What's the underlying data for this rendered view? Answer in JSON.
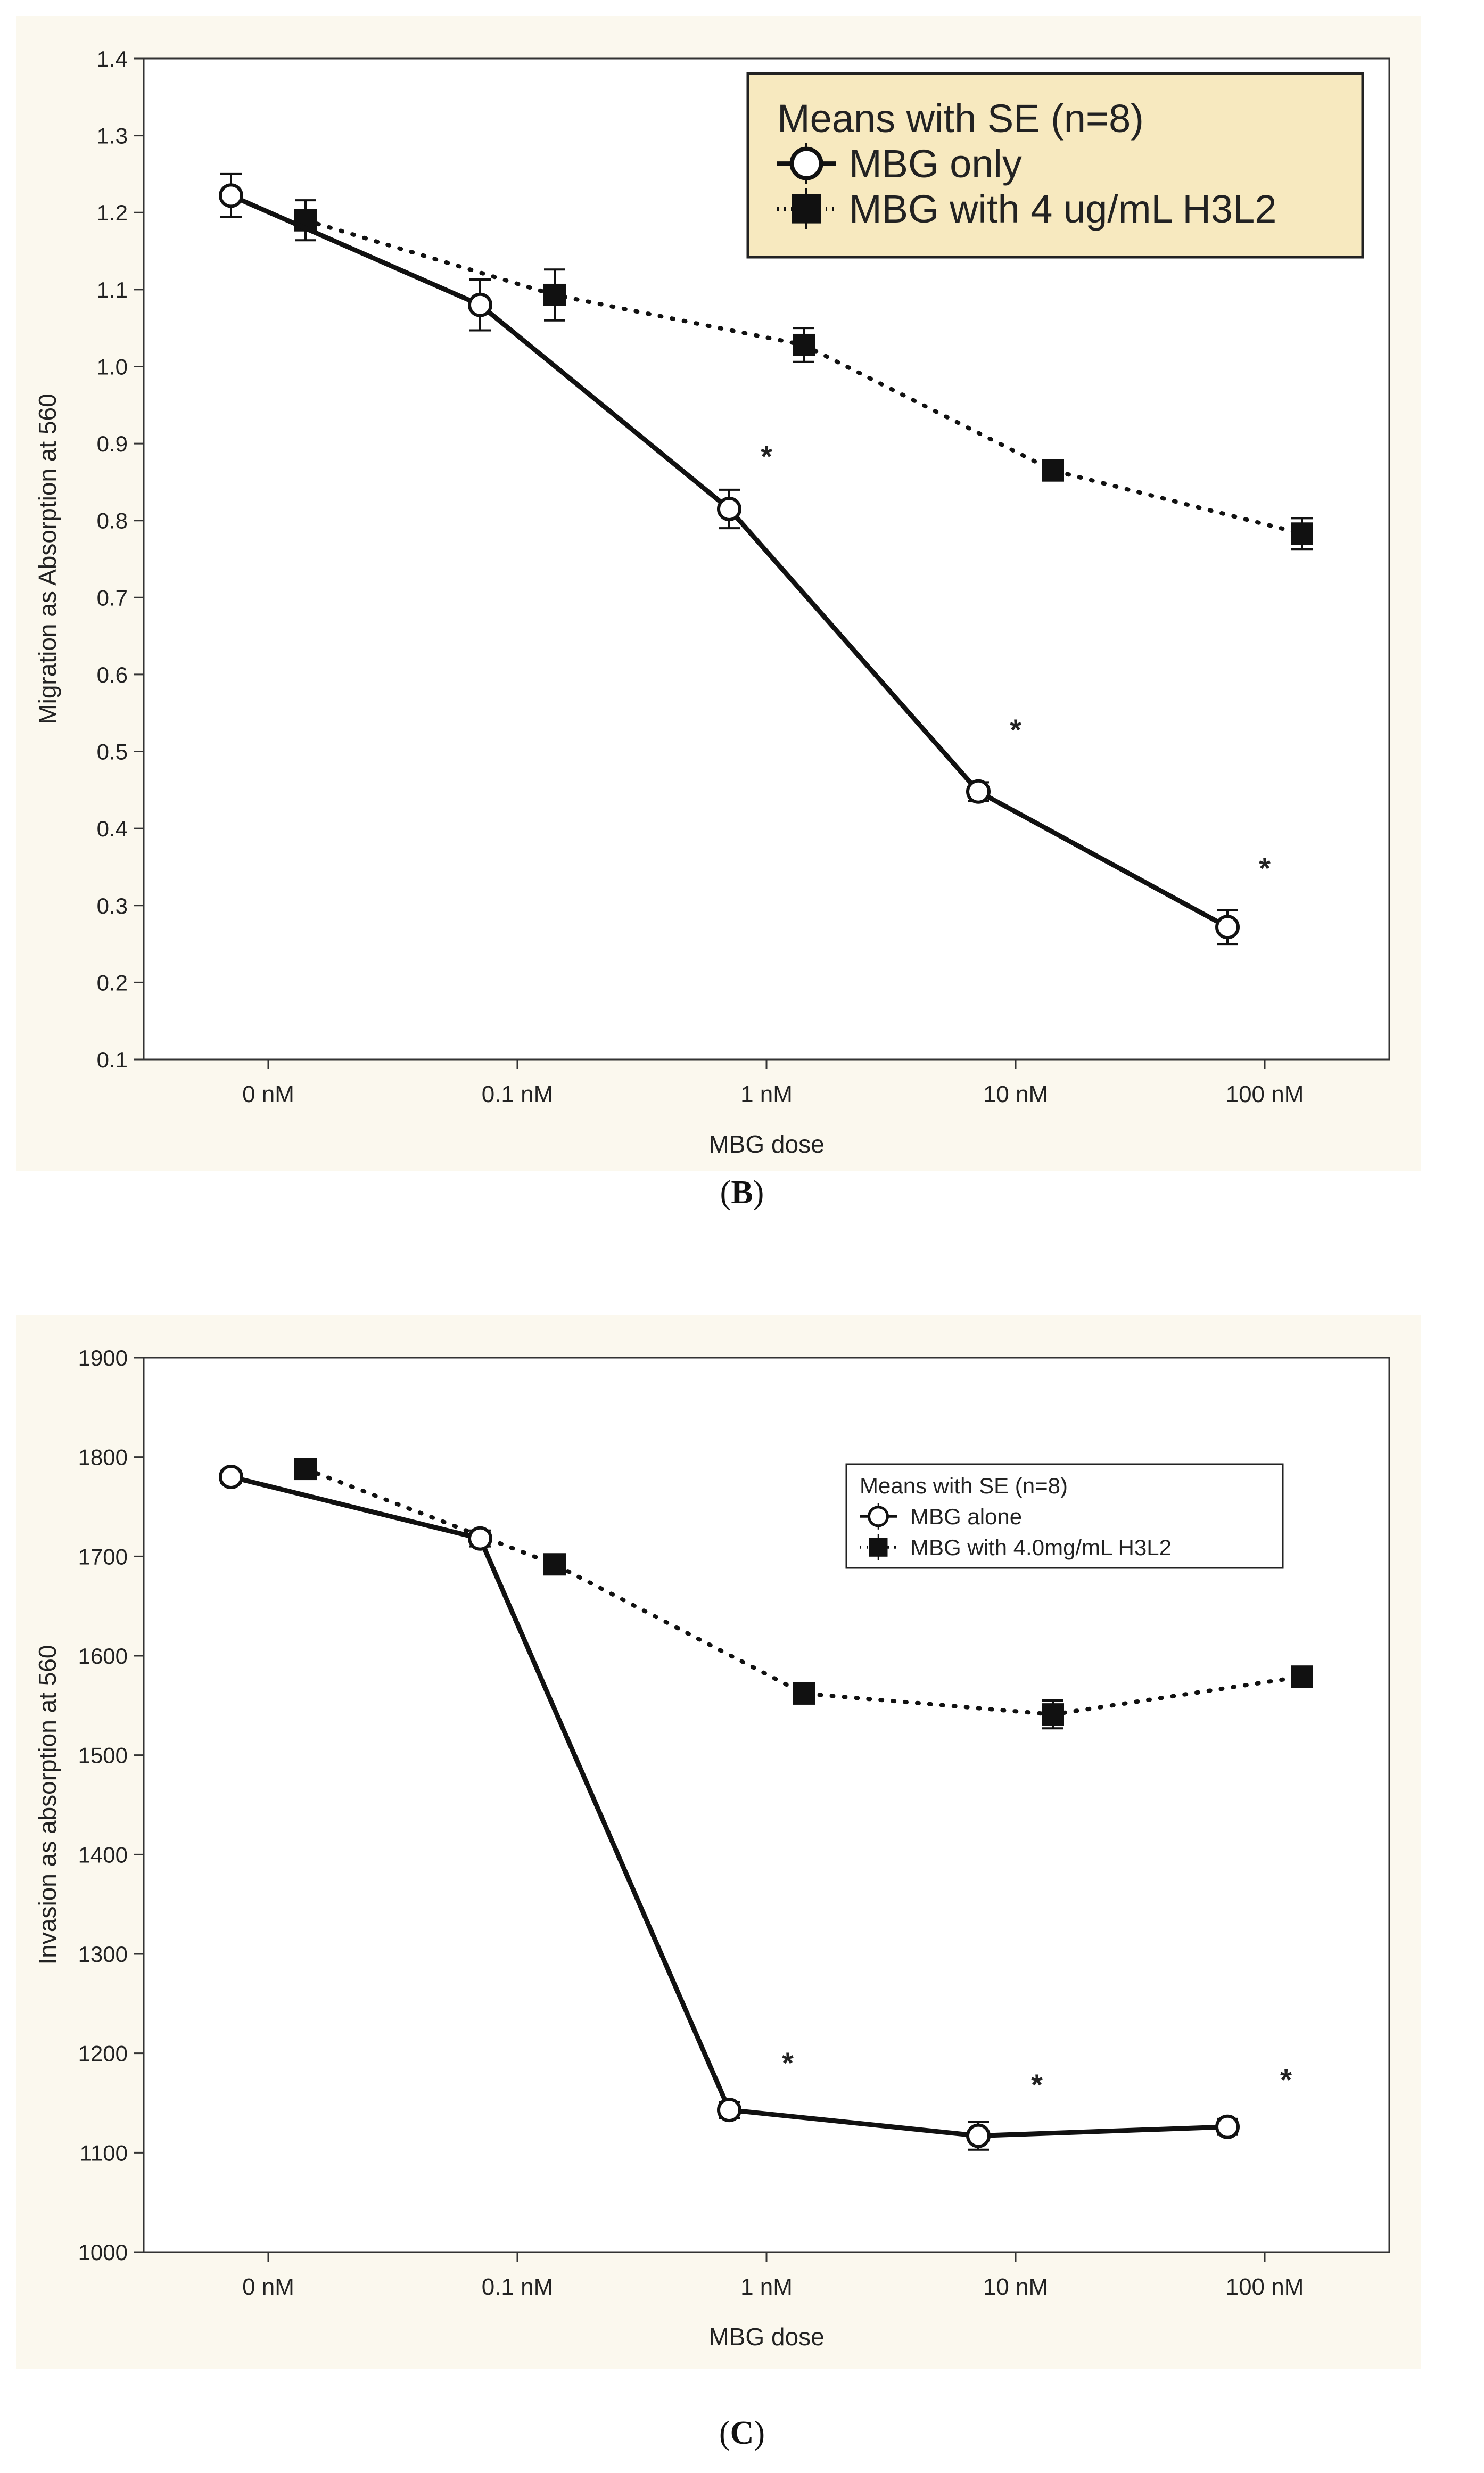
{
  "chart_data": [
    {
      "type": "line",
      "panel": "B",
      "ylabel": "Migration as Absorption at 560",
      "xlabel": "MBG dose",
      "categories": [
        "0 nM",
        "0.1 nM",
        "1 nM",
        "10 nM",
        "100 nM"
      ],
      "ylim": [
        0.1,
        1.4
      ],
      "yticks": [
        "0.1",
        "0.2",
        "0.3",
        "0.4",
        "0.5",
        "0.6",
        "0.7",
        "0.8",
        "0.9",
        "1.0",
        "1.1",
        "1.2",
        "1.3",
        "1.4"
      ],
      "series": [
        {
          "name": "MBG only",
          "marker": "circle",
          "line": "solid",
          "values": [
            1.222,
            1.08,
            0.815,
            0.448,
            0.272
          ],
          "errors": [
            0.028,
            0.033,
            0.025,
            0.012,
            0.022
          ]
        },
        {
          "name": "MBG with 4 ug/mL H3L2",
          "marker": "square",
          "line": "dotted",
          "values": [
            1.19,
            1.093,
            1.028,
            0.865,
            0.783
          ],
          "errors": [
            0.026,
            0.033,
            0.022,
            0.012,
            0.02
          ]
        }
      ],
      "annotations": [
        {
          "text": "*",
          "category": 2,
          "value": 0.87
        },
        {
          "text": "*",
          "category": 3,
          "value": 0.515
        },
        {
          "text": "*",
          "category": 4,
          "value": 0.335
        }
      ],
      "legend": {
        "title": "Means with SE (n=8)",
        "position": "top-right"
      }
    },
    {
      "type": "line",
      "panel": "C",
      "ylabel": "Invasion as absorption at 560",
      "xlabel": "MBG dose",
      "categories": [
        "0 nM",
        "0.1 nM",
        "1 nM",
        "10 nM",
        "100 nM"
      ],
      "ylim": [
        1000,
        1900
      ],
      "yticks": [
        "1000",
        "1100",
        "1200",
        "1300",
        "1400",
        "1500",
        "1600",
        "1700",
        "1800",
        "1900"
      ],
      "series": [
        {
          "name": "MBG alone",
          "marker": "circle",
          "line": "solid",
          "values": [
            1780,
            1718,
            1143,
            1117,
            1126
          ],
          "errors": [
            6,
            8,
            8,
            14,
            8
          ]
        },
        {
          "name": "MBG with 4.0mg/mL H3L2",
          "marker": "square",
          "line": "dotted",
          "values": [
            1788,
            1692,
            1562,
            1541,
            1579
          ],
          "errors": [
            6,
            6,
            8,
            14,
            8
          ]
        }
      ],
      "annotations": [
        {
          "text": "*",
          "category": 2,
          "value": 1180
        },
        {
          "text": "*",
          "category": 3,
          "value": 1158
        },
        {
          "text": "*",
          "category": 4,
          "value": 1163
        }
      ],
      "legend": {
        "title": "Means with SE (n=8)",
        "position": "top-right"
      }
    }
  ],
  "captions": {
    "b_letter": "B",
    "c_letter": "C"
  }
}
